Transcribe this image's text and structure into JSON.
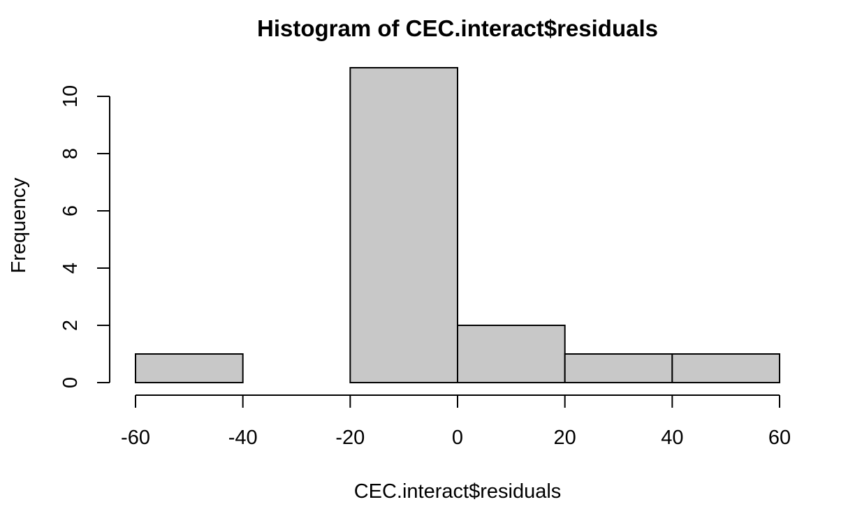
{
  "chart_data": {
    "type": "bar",
    "subtype": "histogram",
    "title": "Histogram of CEC.interact$residuals",
    "xlabel": "CEC.interact$residuals",
    "ylabel": "Frequency",
    "bins": [
      {
        "from": -60,
        "to": -40,
        "count": 1
      },
      {
        "from": -40,
        "to": -20,
        "count": 0
      },
      {
        "from": -20,
        "to": 0,
        "count": 11
      },
      {
        "from": 0,
        "to": 20,
        "count": 2
      },
      {
        "from": 20,
        "to": 40,
        "count": 1
      },
      {
        "from": 40,
        "to": 60,
        "count": 1
      }
    ],
    "xlim": [
      -60,
      60
    ],
    "ylim": [
      0,
      11
    ],
    "x_ticks": [
      -60,
      -40,
      -20,
      0,
      20,
      40,
      60
    ],
    "y_ticks": [
      0,
      2,
      4,
      6,
      8,
      10
    ],
    "grid": false,
    "legend": "none",
    "colors": {
      "bar_fill": "#c8c8c8",
      "bar_stroke": "#000000"
    }
  }
}
